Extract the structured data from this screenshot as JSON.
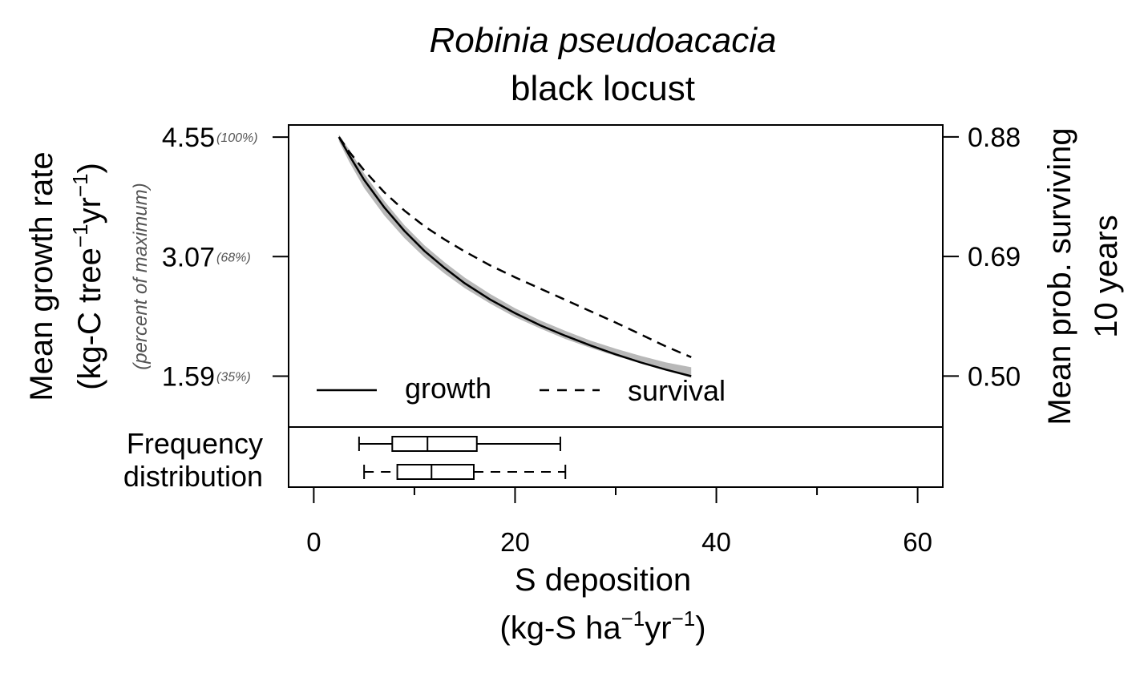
{
  "chart_data": {
    "type": "line",
    "title": "Robinia pseudoacacia",
    "subtitle": "black locust",
    "xlabel": "S deposition",
    "xlabel_units_prefix": "(kg-S ha",
    "xlabel_units_mid": "yr",
    "xlabel_units_suffix": ")",
    "xlabel_sup": "−1",
    "ylabel_left": "Mean growth rate",
    "ylabel_left_units_prefix": "(kg-C tree",
    "ylabel_left_units_mid": "yr",
    "ylabel_left_units_suffix": ")",
    "ylabel_left_sup": "−1",
    "ylabel_left_note": "(percent of maximum)",
    "ylabel_right_line1": "Mean prob. surviving",
    "ylabel_right_line2": "10 years",
    "xlim": [
      -2.5,
      62.5
    ],
    "x_ticks": [
      0,
      20,
      40,
      60
    ],
    "x_minor_ticks": [
      10,
      30,
      50
    ],
    "ylim_left": [
      0.96,
      4.7
    ],
    "y_left_ticks": [
      {
        "value": 4.55,
        "label": "4.55",
        "pct": "(100%)"
      },
      {
        "value": 3.07,
        "label": "3.07",
        "pct": "(68%)"
      },
      {
        "value": 1.59,
        "label": "1.59",
        "pct": "(35%)"
      }
    ],
    "ylim_right": [
      0.419,
      0.899
    ],
    "y_right_ticks": [
      {
        "value": 0.88,
        "label": "0.88"
      },
      {
        "value": 0.69,
        "label": "0.69"
      },
      {
        "value": 0.5,
        "label": "0.50"
      }
    ],
    "series": [
      {
        "name": "growth",
        "style": "solid",
        "color": "#000000",
        "axis": "left",
        "x": [
          2.5,
          3.5,
          5,
          7,
          9,
          11,
          13,
          15,
          17.5,
          20,
          22.5,
          25,
          27.5,
          30,
          32.5,
          35,
          37.5
        ],
        "y": [
          4.55,
          4.33,
          4.02,
          3.68,
          3.39,
          3.14,
          2.93,
          2.74,
          2.54,
          2.37,
          2.22,
          2.09,
          1.97,
          1.86,
          1.76,
          1.67,
          1.59
        ]
      },
      {
        "name": "survival",
        "style": "dashed",
        "color": "#000000",
        "axis": "right",
        "x": [
          2.5,
          3.5,
          5,
          7,
          9,
          11,
          13,
          15,
          17.5,
          20,
          22.5,
          25,
          27.5,
          30,
          32.5,
          35,
          37.5
        ],
        "y": [
          0.88,
          0.857,
          0.827,
          0.792,
          0.763,
          0.738,
          0.717,
          0.698,
          0.676,
          0.657,
          0.639,
          0.621,
          0.603,
          0.585,
          0.566,
          0.547,
          0.53
        ]
      }
    ],
    "confidence_band": {
      "color": "#b8b8b8",
      "axis": "left",
      "x": [
        2.5,
        3.5,
        5,
        7,
        9,
        11,
        13,
        15,
        17.5,
        20,
        22.5,
        25,
        27.5,
        30,
        32.5,
        35,
        37.5
      ],
      "lower": [
        4.5,
        4.25,
        3.92,
        3.58,
        3.3,
        3.06,
        2.86,
        2.68,
        2.49,
        2.32,
        2.18,
        2.05,
        1.94,
        1.84,
        1.75,
        1.66,
        1.57
      ],
      "upper": [
        4.58,
        4.4,
        4.1,
        3.76,
        3.46,
        3.21,
        3.0,
        2.81,
        2.61,
        2.43,
        2.28,
        2.15,
        2.03,
        1.93,
        1.84,
        1.76,
        1.7
      ]
    },
    "legend": {
      "position": "bottom-inside",
      "entries": [
        "growth",
        "survival"
      ]
    },
    "frequency_distribution": {
      "label_line1": "Frequency",
      "label_line2": "distribution",
      "boxes": [
        {
          "style": "solid",
          "min": 4.5,
          "q1": 7.8,
          "median": 11.3,
          "q3": 16.2,
          "max": 24.5
        },
        {
          "style": "dashed",
          "min": 5.0,
          "q1": 8.3,
          "median": 11.7,
          "q3": 15.9,
          "max": 25.0
        }
      ]
    },
    "grid": false
  }
}
